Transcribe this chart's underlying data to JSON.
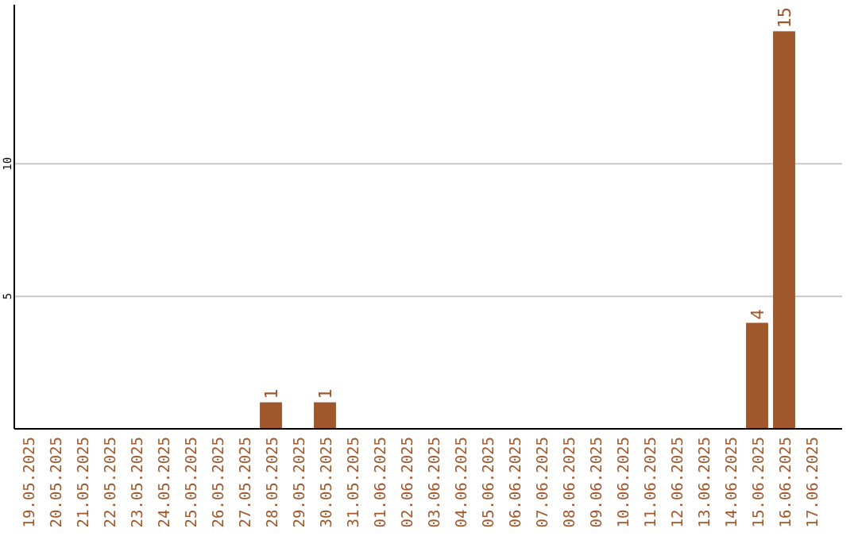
{
  "chart_data": {
    "type": "bar",
    "categories": [
      "19.05.2025",
      "20.05.2025",
      "21.05.2025",
      "22.05.2025",
      "23.05.2025",
      "24.05.2025",
      "25.05.2025",
      "26.05.2025",
      "27.05.2025",
      "28.05.2025",
      "29.05.2025",
      "30.05.2025",
      "31.05.2025",
      "01.06.2025",
      "02.06.2025",
      "03.06.2025",
      "04.06.2025",
      "05.06.2025",
      "06.06.2025",
      "07.06.2025",
      "08.06.2025",
      "09.06.2025",
      "10.06.2025",
      "11.06.2025",
      "12.06.2025",
      "13.06.2025",
      "14.06.2025",
      "15.06.2025",
      "16.06.2025",
      "17.06.2025"
    ],
    "values": [
      0,
      0,
      0,
      0,
      0,
      0,
      0,
      0,
      0,
      1,
      0,
      1,
      0,
      0,
      0,
      0,
      0,
      0,
      0,
      0,
      0,
      0,
      0,
      0,
      0,
      0,
      0,
      4,
      15,
      0
    ],
    "value_labels": [
      null,
      null,
      null,
      null,
      null,
      null,
      null,
      null,
      null,
      "1",
      null,
      "1",
      null,
      null,
      null,
      null,
      null,
      null,
      null,
      null,
      null,
      null,
      null,
      null,
      null,
      null,
      null,
      "4",
      "15",
      null
    ],
    "color": "#a0572b",
    "ylim": [
      0,
      16
    ],
    "yticks": [
      5,
      10
    ],
    "grid": "y"
  }
}
